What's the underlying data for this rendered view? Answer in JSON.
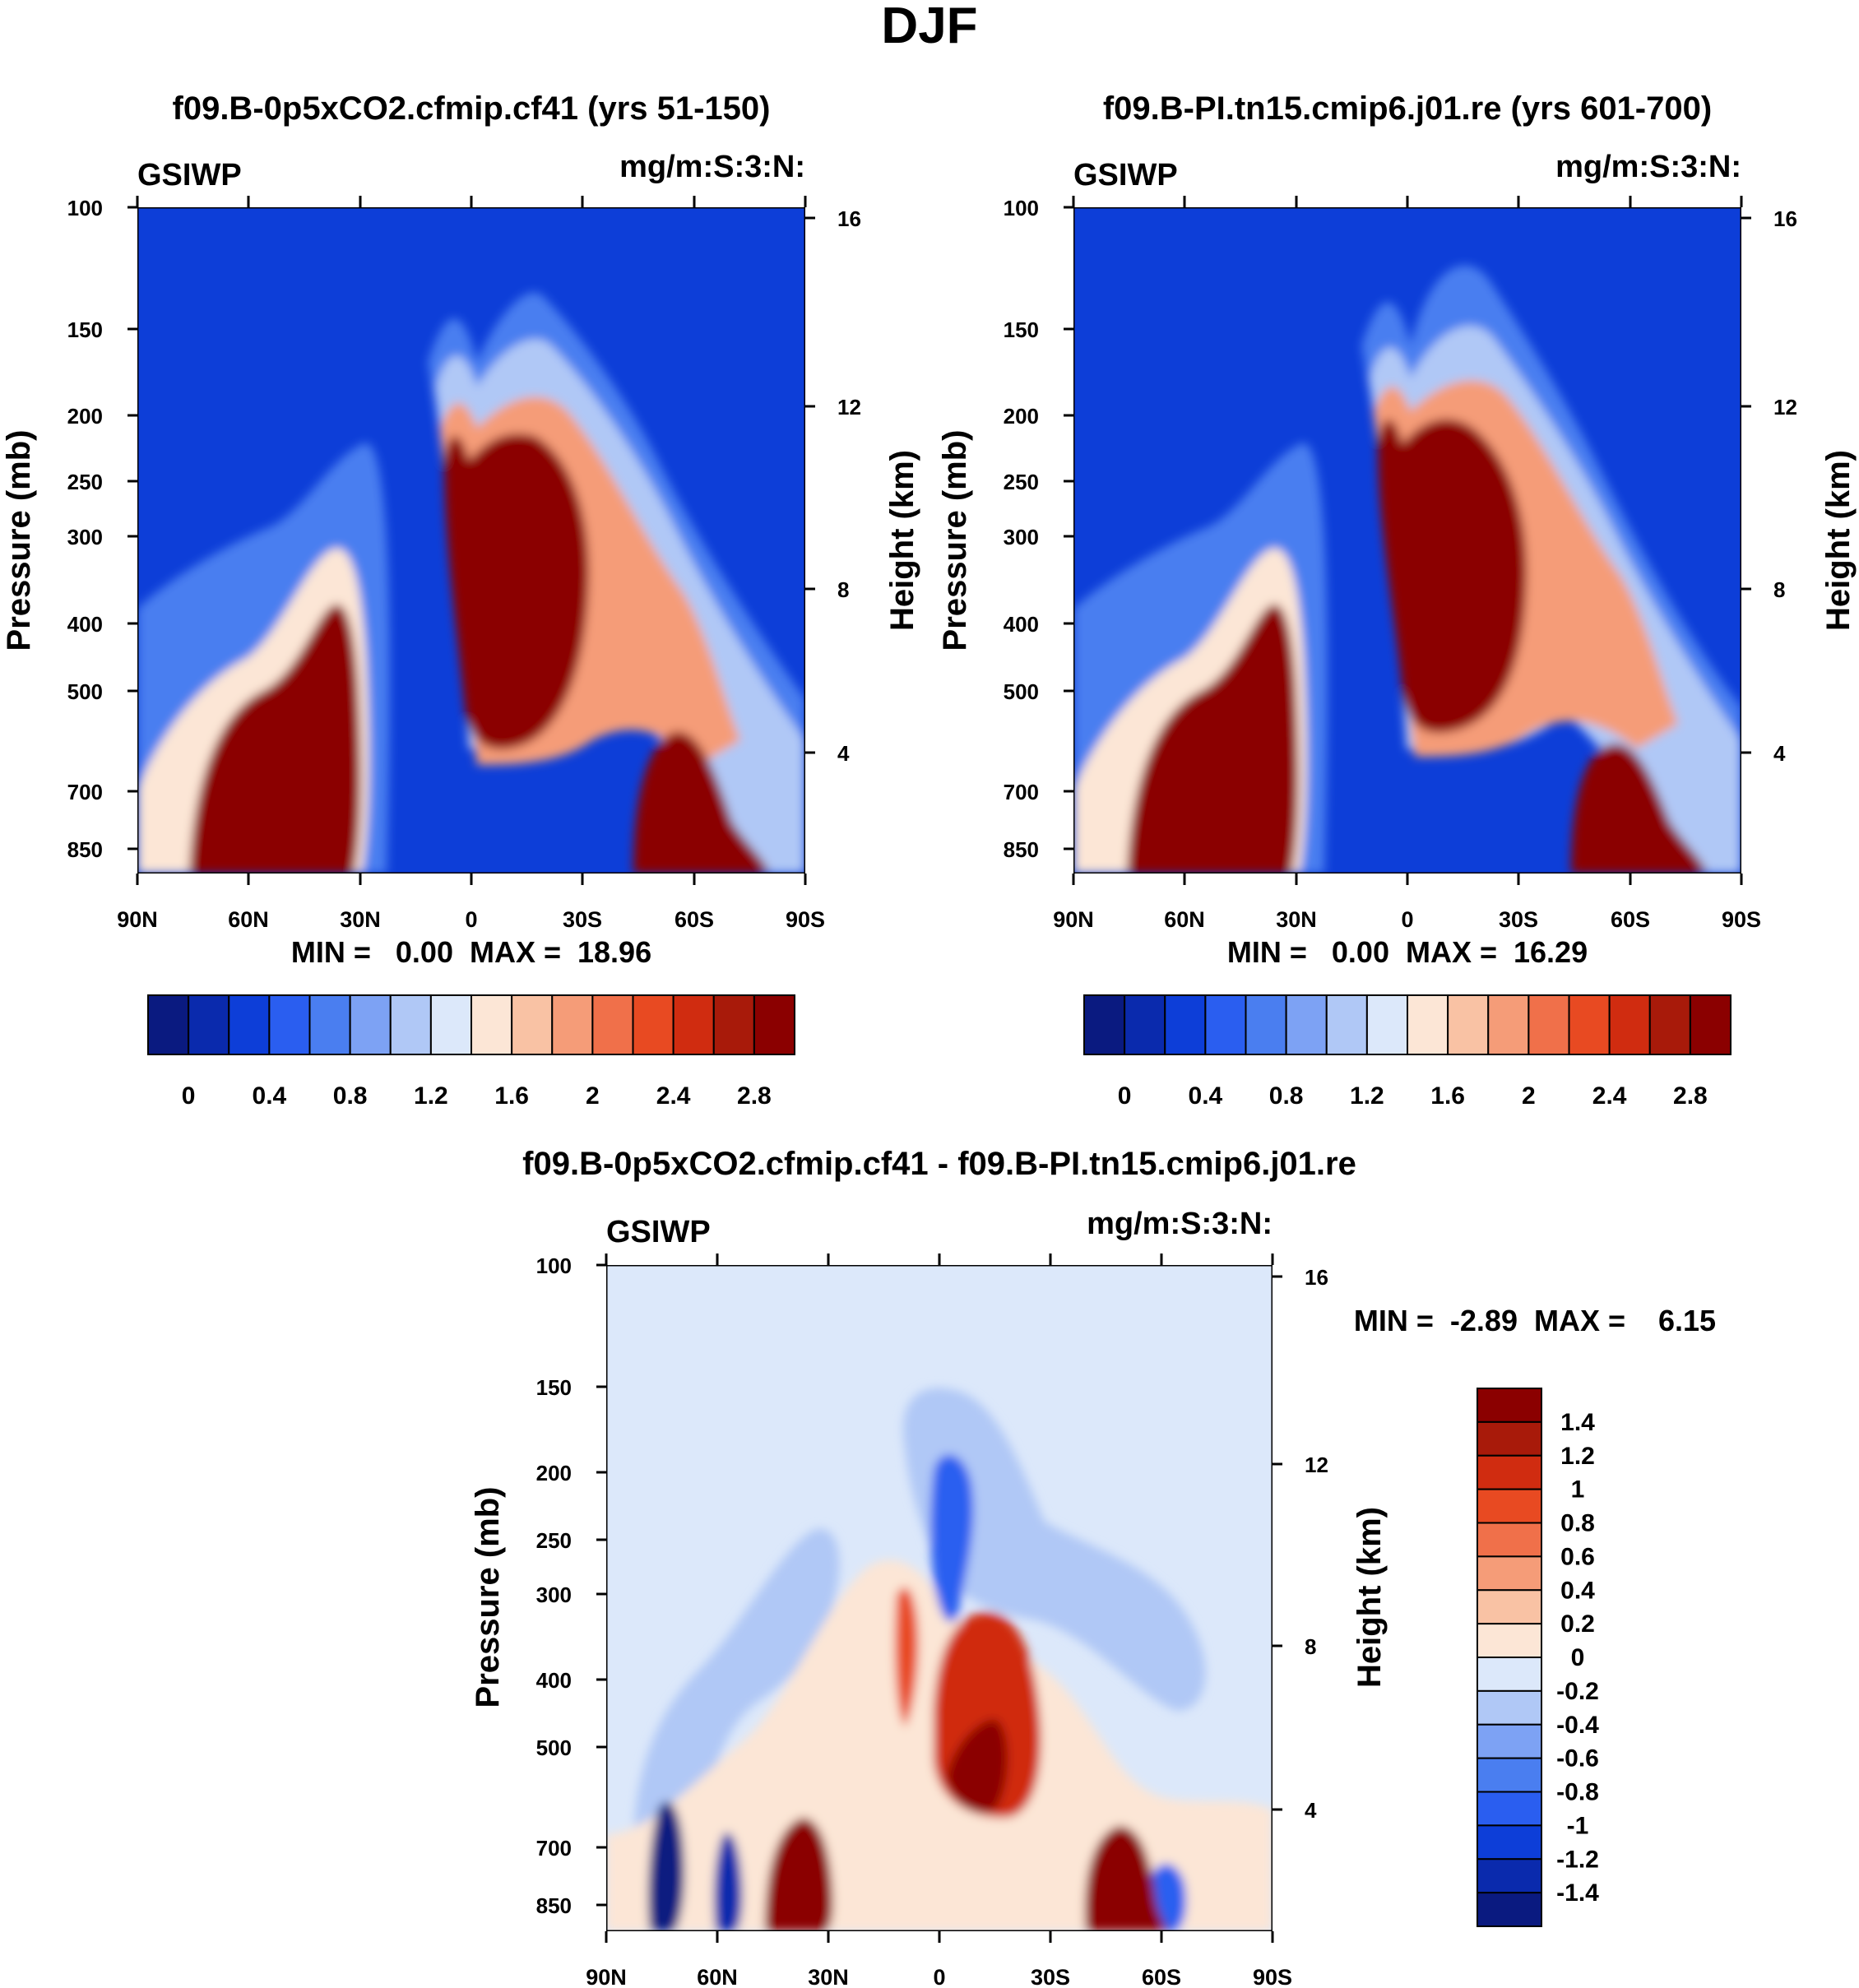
{
  "title": "DJF",
  "chart_data": [
    {
      "type": "contour",
      "title": "f09.B-0p5xCO2.cfmip.cf41 (yrs 51-150)",
      "left_label": "GSIWP",
      "right_label": "mg/m:S:3:N:",
      "ylabel": "Pressure (mb)",
      "ylabel2": "Height (km)",
      "x_ticks": [
        "90N",
        "60N",
        "30N",
        "0",
        "30S",
        "60S",
        "90S"
      ],
      "y_ticks": [
        "100",
        "150",
        "200",
        "250",
        "300",
        "400",
        "500",
        "700",
        "850"
      ],
      "y2_ticks": [
        "16",
        "12",
        "8",
        "4"
      ],
      "minmax": "MIN =   0.00  MAX =  18.96",
      "colorbar_labels": [
        "0",
        "0.4",
        "0.8",
        "1.2",
        "1.6",
        "2",
        "2.4",
        "2.8"
      ]
    },
    {
      "type": "contour",
      "title": "f09.B-PI.tn15.cmip6.j01.re (yrs 601-700)",
      "left_label": "GSIWP",
      "right_label": "mg/m:S:3:N:",
      "ylabel": "Pressure (mb)",
      "ylabel2": "Height (km)",
      "x_ticks": [
        "90N",
        "60N",
        "30N",
        "0",
        "30S",
        "60S",
        "90S"
      ],
      "y_ticks": [
        "100",
        "150",
        "200",
        "250",
        "300",
        "400",
        "500",
        "700",
        "850"
      ],
      "y2_ticks": [
        "16",
        "12",
        "8",
        "4"
      ],
      "minmax": "MIN =   0.00  MAX =  16.29",
      "colorbar_labels": [
        "0",
        "0.4",
        "0.8",
        "1.2",
        "1.6",
        "2",
        "2.4",
        "2.8"
      ]
    },
    {
      "type": "contour",
      "title": "f09.B-0p5xCO2.cfmip.cf41 - f09.B-PI.tn15.cmip6.j01.re",
      "left_label": "GSIWP",
      "right_label": "mg/m:S:3:N:",
      "ylabel": "Pressure (mb)",
      "ylabel2": "Height (km)",
      "x_ticks": [
        "90N",
        "60N",
        "30N",
        "0",
        "30S",
        "60S",
        "90S"
      ],
      "y_ticks": [
        "100",
        "150",
        "200",
        "250",
        "300",
        "400",
        "500",
        "700",
        "850"
      ],
      "y2_ticks": [
        "16",
        "12",
        "8",
        "4"
      ],
      "minmax": "MIN =  -2.89  MAX =    6.15",
      "colorbar_labels": [
        "1.4",
        "1.2",
        "1",
        "0.8",
        "0.6",
        "0.4",
        "0.2",
        "0",
        "-0.2",
        "-0.4",
        "-0.6",
        "-0.8",
        "-1",
        "-1.2",
        "-1.4"
      ]
    }
  ],
  "colors": {
    "seq": [
      "#0a1a80",
      "#0a2aad",
      "#0d3ed8",
      "#2a5ef0",
      "#4a7ef0",
      "#7da2f4",
      "#b0c8f6",
      "#dce8fa",
      "#fce6d6",
      "#f9c2a4",
      "#f59c78",
      "#f0704a",
      "#e84a22",
      "#d02c10",
      "#a81a0a",
      "#8b0000"
    ],
    "div": [
      "#0a1a80",
      "#0a2aad",
      "#0d3ed8",
      "#2a5ef0",
      "#4a7ef0",
      "#7da2f4",
      "#b0c8f6",
      "#dce8fa",
      "#fce6d6",
      "#f9c2a4",
      "#f59c78",
      "#f0704a",
      "#e84a22",
      "#d02c10",
      "#a81a0a",
      "#8b0000"
    ]
  }
}
